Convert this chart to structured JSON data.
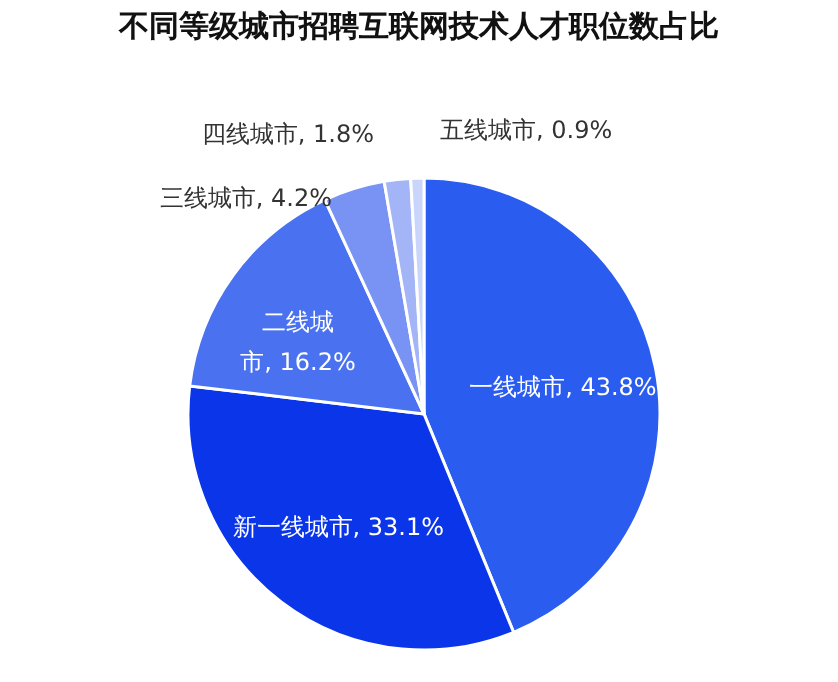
{
  "chart_data": {
    "type": "pie",
    "title": "不同等级城市招聘互联网技术人才职位数占比",
    "categories": [
      "一线城市",
      "新一线城市",
      "二线城市",
      "三线城市",
      "四线城市",
      "五线城市"
    ],
    "values": [
      43.8,
      33.1,
      16.2,
      4.2,
      1.8,
      0.9
    ],
    "colors": [
      "#2a5cf0",
      "#0a35e8",
      "#4a72f0",
      "#7893f3",
      "#a3b5f7",
      "#c9d5fb"
    ],
    "value_labels": [
      "43.8%",
      "33.1%",
      "16.2%",
      "4.2%",
      "1.8%",
      "0.9%"
    ]
  }
}
